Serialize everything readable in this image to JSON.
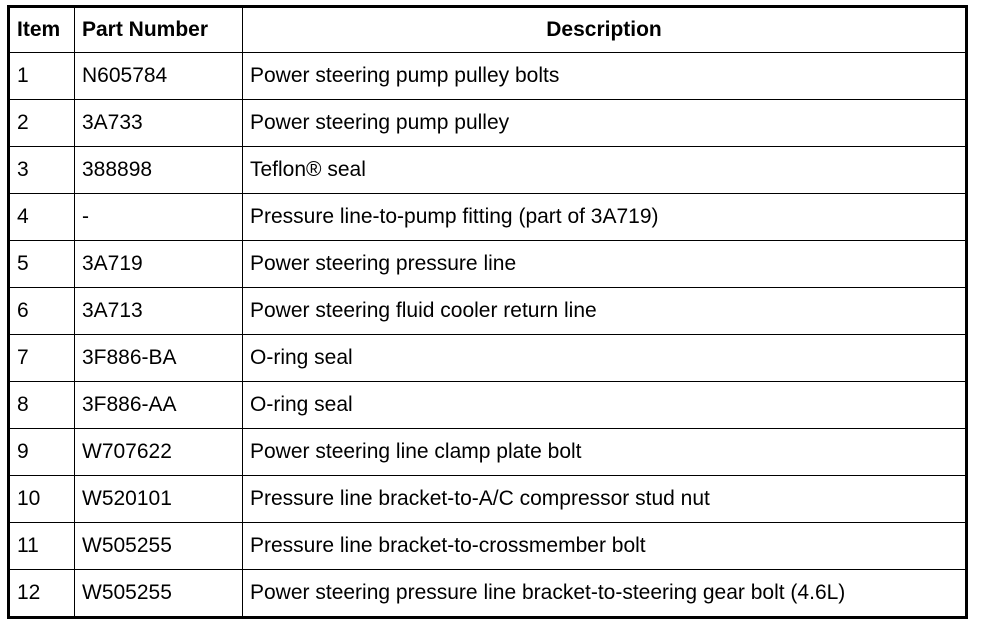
{
  "headers": {
    "item": "Item",
    "part_number": "Part Number",
    "description": "Description"
  },
  "rows": [
    {
      "item": "1",
      "part": "N605784",
      "desc": "Power steering pump pulley bolts"
    },
    {
      "item": "2",
      "part": "3A733",
      "desc": "Power steering pump pulley"
    },
    {
      "item": "3",
      "part": "388898",
      "desc": "Teflon® seal"
    },
    {
      "item": "4",
      "part": "-",
      "desc": "Pressure line-to-pump fitting (part of 3A719)"
    },
    {
      "item": "5",
      "part": "3A719",
      "desc": "Power steering pressure line"
    },
    {
      "item": "6",
      "part": "3A713",
      "desc": "Power steering fluid cooler return line"
    },
    {
      "item": "7",
      "part": "3F886-BA",
      "desc": "O-ring seal"
    },
    {
      "item": "8",
      "part": "3F886-AA",
      "desc": "O-ring seal"
    },
    {
      "item": "9",
      "part": "W707622",
      "desc": "Power steering line clamp plate bolt"
    },
    {
      "item": "10",
      "part": "W520101",
      "desc": "Pressure line bracket-to-A/C compressor stud nut"
    },
    {
      "item": "11",
      "part": "W505255",
      "desc": "Pressure line bracket-to-crossmember bolt"
    },
    {
      "item": "12",
      "part": "W505255",
      "desc": "Power steering pressure line bracket-to-steering gear bolt (4.6L)"
    }
  ]
}
